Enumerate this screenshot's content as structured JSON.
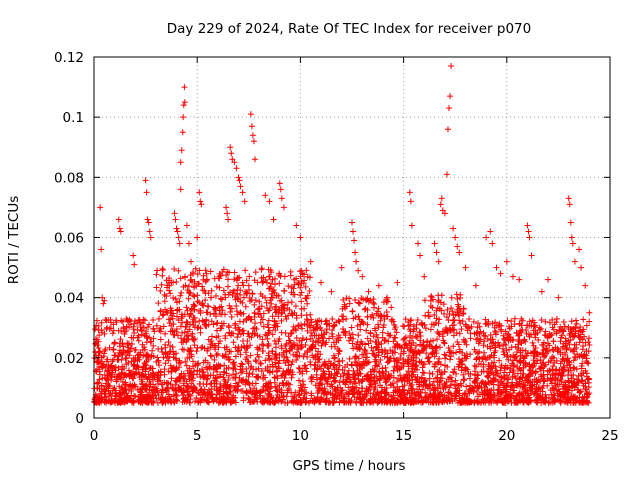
{
  "chart_data": {
    "type": "scatter",
    "title": "Day 229 of 2024, Rate Of TEC Index for receiver p070",
    "xlabel": "GPS time / hours",
    "ylabel": "ROTI / TECUs",
    "xlim": [
      0,
      25
    ],
    "ylim": [
      0,
      0.12
    ],
    "xticks": [
      0,
      5,
      10,
      15,
      20,
      25
    ],
    "yticks": [
      0,
      0.02,
      0.04,
      0.06,
      0.08,
      0.1,
      0.12
    ],
    "xtick_labels": [
      "0",
      "5",
      "10",
      "15",
      "20",
      "25"
    ],
    "ytick_labels": [
      "0",
      "0.02",
      "0.04",
      "0.06",
      "0.08",
      "0.1",
      "0.12"
    ],
    "grid": true,
    "marker": "+",
    "color": "#ff0000",
    "data_x_range": [
      0,
      24
    ],
    "bulk_band": [
      0.005,
      0.025
    ],
    "series": [
      {
        "name": "ROTI",
        "points": [
          [
            0.3,
            0.07
          ],
          [
            0.35,
            0.056
          ],
          [
            0.4,
            0.04
          ],
          [
            0.45,
            0.038
          ],
          [
            0.5,
            0.039
          ],
          [
            1.2,
            0.066
          ],
          [
            1.25,
            0.063
          ],
          [
            1.3,
            0.062
          ],
          [
            1.9,
            0.054
          ],
          [
            1.95,
            0.051
          ],
          [
            2.5,
            0.079
          ],
          [
            2.55,
            0.075
          ],
          [
            2.6,
            0.066
          ],
          [
            2.65,
            0.065
          ],
          [
            2.7,
            0.062
          ],
          [
            2.75,
            0.06
          ],
          [
            3.9,
            0.068
          ],
          [
            3.95,
            0.066
          ],
          [
            4.0,
            0.063
          ],
          [
            4.05,
            0.062
          ],
          [
            4.1,
            0.06
          ],
          [
            4.15,
            0.058
          ],
          [
            4.2,
            0.085
          ],
          [
            4.25,
            0.089
          ],
          [
            4.3,
            0.095
          ],
          [
            4.32,
            0.1
          ],
          [
            4.35,
            0.104
          ],
          [
            4.38,
            0.11
          ],
          [
            4.4,
            0.105
          ],
          [
            4.2,
            0.076
          ],
          [
            4.5,
            0.064
          ],
          [
            4.6,
            0.058
          ],
          [
            4.7,
            0.052
          ],
          [
            5.0,
            0.06
          ],
          [
            5.1,
            0.075
          ],
          [
            5.15,
            0.072
          ],
          [
            5.2,
            0.071
          ],
          [
            6.4,
            0.07
          ],
          [
            6.45,
            0.068
          ],
          [
            6.5,
            0.066
          ],
          [
            6.6,
            0.09
          ],
          [
            6.65,
            0.088
          ],
          [
            6.7,
            0.086
          ],
          [
            6.8,
            0.085
          ],
          [
            6.9,
            0.083
          ],
          [
            7.0,
            0.08
          ],
          [
            7.05,
            0.079
          ],
          [
            7.1,
            0.077
          ],
          [
            7.2,
            0.075
          ],
          [
            7.3,
            0.072
          ],
          [
            7.6,
            0.101
          ],
          [
            7.65,
            0.097
          ],
          [
            7.7,
            0.094
          ],
          [
            7.75,
            0.092
          ],
          [
            7.8,
            0.086
          ],
          [
            8.3,
            0.074
          ],
          [
            8.5,
            0.072
          ],
          [
            8.7,
            0.066
          ],
          [
            9.0,
            0.078
          ],
          [
            9.05,
            0.076
          ],
          [
            9.1,
            0.073
          ],
          [
            9.2,
            0.07
          ],
          [
            9.8,
            0.064
          ],
          [
            10.0,
            0.06
          ],
          [
            10.5,
            0.052
          ],
          [
            11.0,
            0.045
          ],
          [
            11.5,
            0.042
          ],
          [
            12.0,
            0.05
          ],
          [
            12.5,
            0.065
          ],
          [
            12.55,
            0.062
          ],
          [
            12.6,
            0.059
          ],
          [
            12.65,
            0.055
          ],
          [
            12.7,
            0.052
          ],
          [
            12.8,
            0.049
          ],
          [
            13.0,
            0.047
          ],
          [
            13.3,
            0.042
          ],
          [
            13.8,
            0.044
          ],
          [
            14.2,
            0.04
          ],
          [
            14.7,
            0.045
          ],
          [
            15.3,
            0.075
          ],
          [
            15.35,
            0.072
          ],
          [
            15.4,
            0.064
          ],
          [
            15.7,
            0.058
          ],
          [
            15.8,
            0.054
          ],
          [
            16.0,
            0.047
          ],
          [
            16.5,
            0.058
          ],
          [
            16.6,
            0.055
          ],
          [
            16.7,
            0.052
          ],
          [
            16.8,
            0.071
          ],
          [
            16.85,
            0.073
          ],
          [
            16.9,
            0.069
          ],
          [
            17.0,
            0.068
          ],
          [
            17.1,
            0.081
          ],
          [
            17.15,
            0.096
          ],
          [
            17.2,
            0.103
          ],
          [
            17.25,
            0.107
          ],
          [
            17.3,
            0.117
          ],
          [
            17.4,
            0.063
          ],
          [
            17.5,
            0.06
          ],
          [
            17.6,
            0.057
          ],
          [
            17.7,
            0.055
          ],
          [
            18.0,
            0.05
          ],
          [
            18.5,
            0.044
          ],
          [
            19.0,
            0.06
          ],
          [
            19.2,
            0.062
          ],
          [
            19.3,
            0.058
          ],
          [
            19.5,
            0.05
          ],
          [
            19.7,
            0.048
          ],
          [
            20.0,
            0.052
          ],
          [
            20.3,
            0.047
          ],
          [
            20.6,
            0.046
          ],
          [
            21.0,
            0.064
          ],
          [
            21.05,
            0.062
          ],
          [
            21.1,
            0.06
          ],
          [
            21.2,
            0.054
          ],
          [
            21.7,
            0.042
          ],
          [
            22.0,
            0.046
          ],
          [
            22.5,
            0.04
          ],
          [
            23.0,
            0.073
          ],
          [
            23.05,
            0.071
          ],
          [
            23.1,
            0.065
          ],
          [
            23.15,
            0.06
          ],
          [
            23.2,
            0.058
          ],
          [
            23.3,
            0.052
          ],
          [
            23.5,
            0.056
          ],
          [
            23.6,
            0.05
          ],
          [
            23.8,
            0.044
          ],
          [
            24.0,
            0.035
          ]
        ]
      }
    ]
  }
}
